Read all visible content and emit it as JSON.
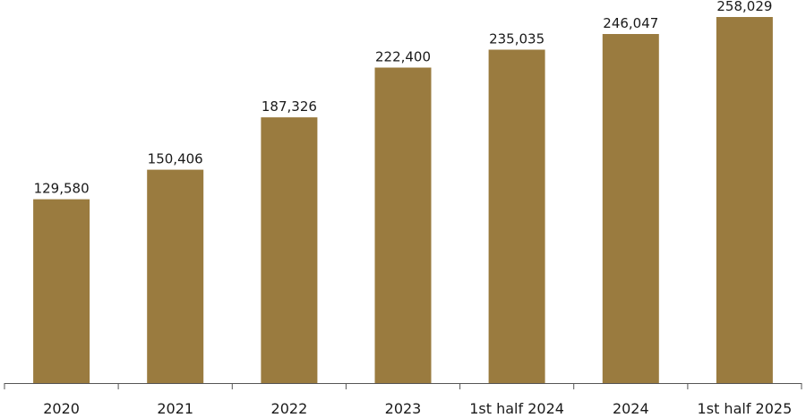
{
  "chart_data": {
    "type": "bar",
    "title": "",
    "xlabel": "",
    "ylabel": "",
    "categories": [
      "2020",
      "2021",
      "2022",
      "2023",
      "1st half 2024",
      "2024",
      "1st half 2025"
    ],
    "values": [
      129580,
      150406,
      187326,
      222400,
      235035,
      246047,
      258029
    ],
    "value_labels": [
      "129,580",
      "150,406",
      "187,326",
      "222,400",
      "235,035",
      "246,047",
      "258,029"
    ],
    "ylim": [
      0,
      265000
    ],
    "grid": false,
    "legend": "none",
    "bar_color": "#9a7b3f",
    "axis_color": "#555555"
  }
}
